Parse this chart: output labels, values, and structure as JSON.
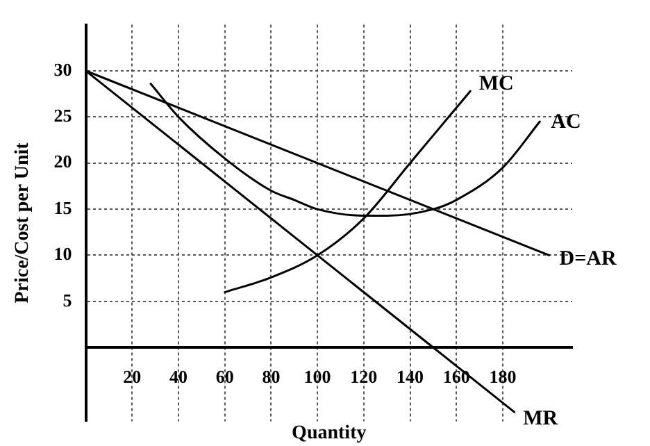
{
  "chart_data": {
    "type": "line",
    "xlabel": "Quantity",
    "ylabel": "Price/Cost per Unit",
    "xlim": [
      0,
      210
    ],
    "ylim": [
      -8,
      35
    ],
    "xticks": [
      20,
      40,
      60,
      80,
      100,
      120,
      140,
      160,
      180
    ],
    "yticks": [
      5,
      10,
      15,
      20,
      25,
      30
    ],
    "grid": true,
    "legend": false,
    "marker": "none",
    "line_style": "solid",
    "series": [
      {
        "name": "MC",
        "color": "#000000",
        "x": [
          60,
          80,
          100,
          120,
          140,
          150,
          166
        ],
        "values": [
          6,
          7.6,
          10,
          14,
          20,
          23,
          27.8
        ]
      },
      {
        "name": "AC",
        "color": "#000000",
        "x": [
          28,
          40,
          60,
          80,
          90,
          100,
          120,
          130,
          150,
          160,
          180,
          196
        ],
        "values": [
          28.6,
          25,
          20.5,
          17,
          16,
          15,
          14.3,
          14.3,
          15,
          16,
          19.5,
          24.5
        ]
      },
      {
        "name": "D=AR",
        "color": "#000000",
        "x": [
          0,
          200
        ],
        "values": [
          30,
          10
        ]
      },
      {
        "name": "MR",
        "color": "#000000",
        "x": [
          0,
          150,
          185
        ],
        "values": [
          30,
          0,
          -7
        ]
      }
    ]
  }
}
